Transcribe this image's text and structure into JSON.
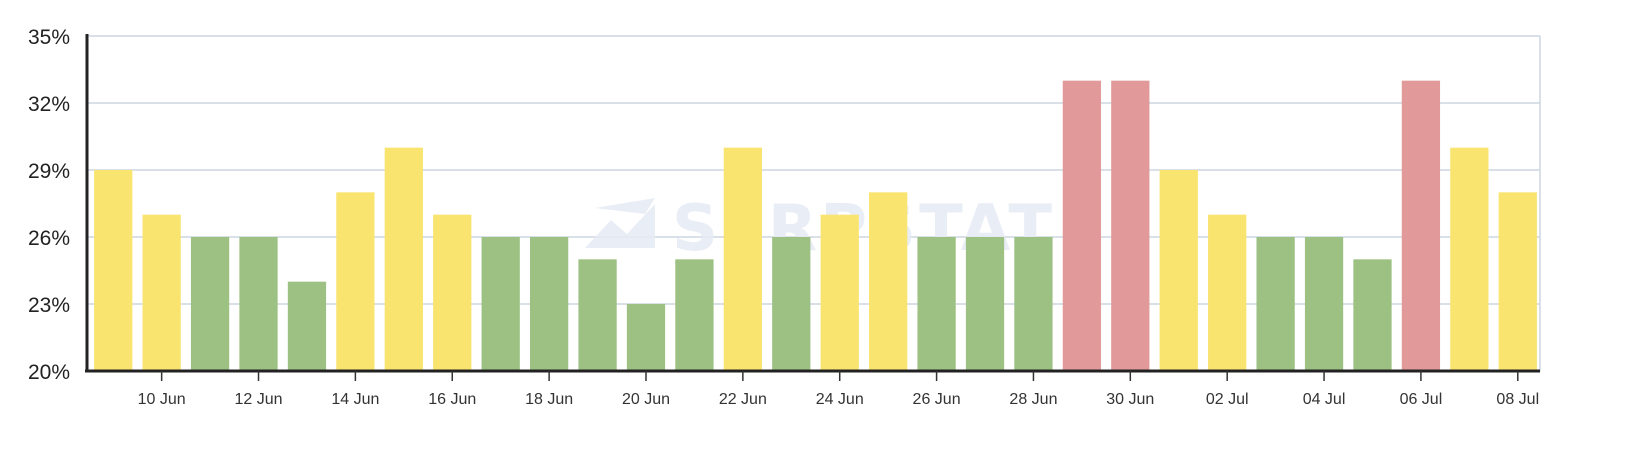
{
  "watermark": "SERPSTAT",
  "chart_data": {
    "type": "bar",
    "title": "",
    "xlabel": "",
    "ylabel": "",
    "y_unit": "%",
    "ylim": [
      20,
      35
    ],
    "yticks": [
      20,
      23,
      26,
      29,
      32,
      35
    ],
    "y_tick_labels": [
      "20%",
      "23%",
      "26%",
      "29%",
      "32%",
      "35%"
    ],
    "grid": true,
    "categories": [
      "09 Jun",
      "10 Jun",
      "11 Jun",
      "12 Jun",
      "13 Jun",
      "14 Jun",
      "15 Jun",
      "16 Jun",
      "17 Jun",
      "18 Jun",
      "19 Jun",
      "20 Jun",
      "21 Jun",
      "22 Jun",
      "23 Jun",
      "24 Jun",
      "25 Jun",
      "26 Jun",
      "27 Jun",
      "28 Jun",
      "29 Jun",
      "30 Jun",
      "01 Jul",
      "02 Jul",
      "03 Jul",
      "04 Jul",
      "05 Jul",
      "06 Jul",
      "07 Jul",
      "08 Jul"
    ],
    "x_tick_labels": [
      "10 Jun",
      "12 Jun",
      "14 Jun",
      "16 Jun",
      "18 Jun",
      "20 Jun",
      "22 Jun",
      "24 Jun",
      "26 Jun",
      "28 Jun",
      "30 Jun",
      "02 Jul",
      "04 Jul",
      "06 Jul",
      "08 Jul"
    ],
    "values": [
      29,
      27,
      26,
      26,
      24,
      28,
      30,
      27,
      26,
      26,
      25,
      23,
      25,
      30,
      26,
      27,
      28,
      26,
      26,
      26,
      33,
      33,
      29,
      27,
      26,
      26,
      25,
      33,
      30,
      28
    ],
    "colors": {
      "green": "#9cc183",
      "yellow": "#f9e470",
      "red": "#e19a99"
    },
    "bar_colors": [
      "yellow",
      "yellow",
      "green",
      "green",
      "green",
      "yellow",
      "yellow",
      "yellow",
      "green",
      "green",
      "green",
      "green",
      "green",
      "yellow",
      "green",
      "yellow",
      "yellow",
      "green",
      "green",
      "green",
      "red",
      "red",
      "yellow",
      "yellow",
      "green",
      "green",
      "green",
      "red",
      "yellow",
      "yellow"
    ]
  }
}
